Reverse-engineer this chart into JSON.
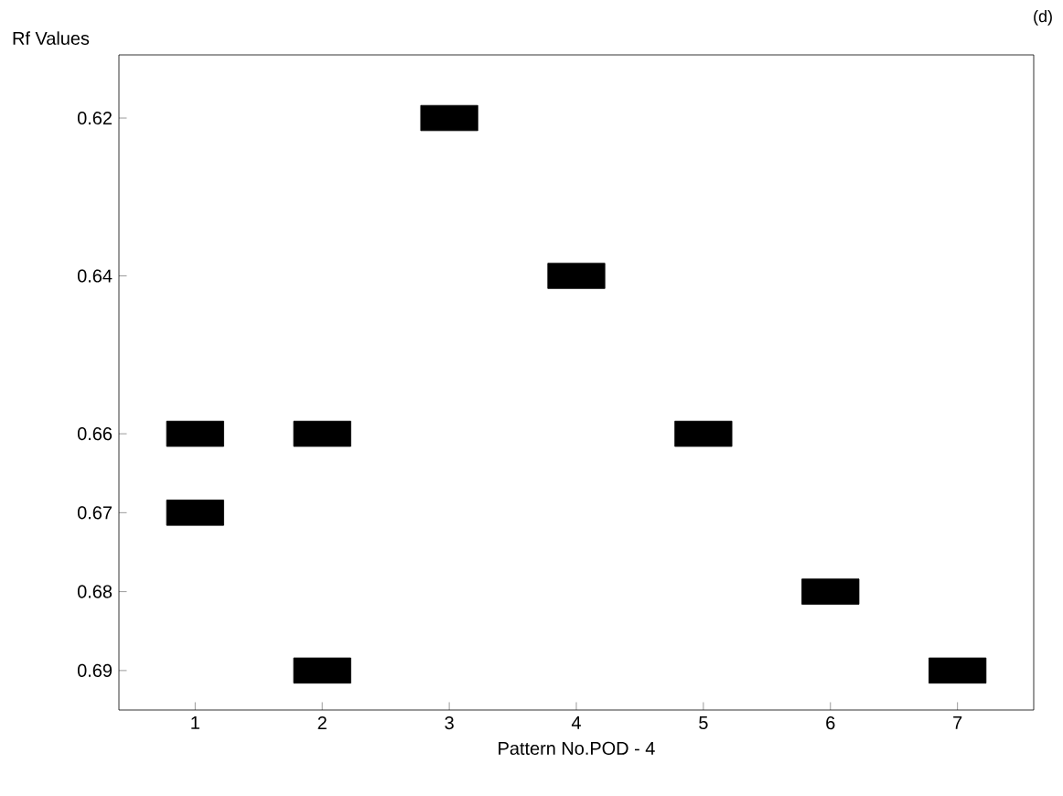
{
  "chart_data": {
    "type": "scatter",
    "xlabel": "Pattern No.POD - 4",
    "ylabel": "Rf Values",
    "annotations": [
      "(d)"
    ],
    "series": [
      {
        "color": "#000000",
        "x": [
          1,
          1,
          2,
          2,
          3,
          4,
          5,
          6,
          7
        ],
        "values": [
          0.66,
          0.67,
          0.66,
          0.69,
          0.62,
          0.64,
          0.66,
          0.68,
          0.69
        ]
      }
    ],
    "marker": "square",
    "xlim": [
      0.4,
      7.6
    ],
    "xticks": [
      1,
      2,
      3,
      4,
      5,
      6,
      7
    ],
    "ylim": [
      0.695,
      0.612
    ],
    "yticks": [
      0.62,
      0.64,
      0.66,
      0.67,
      0.68,
      0.69
    ],
    "grid": false
  }
}
